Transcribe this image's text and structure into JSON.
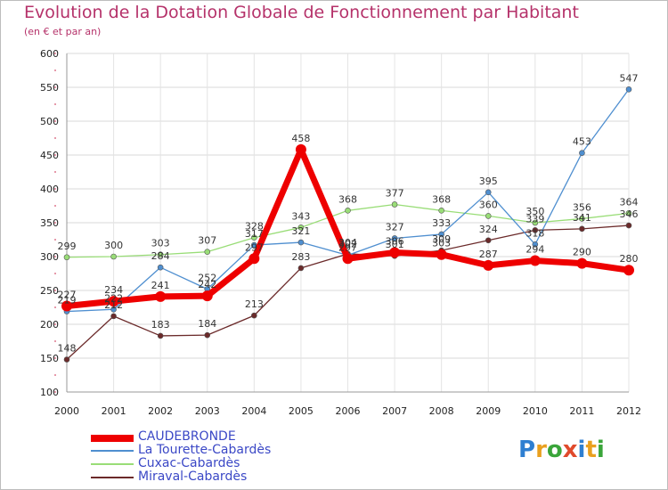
{
  "header": {
    "title": "Evolution de la Dotation Globale de Fonctionnement par Habitant",
    "subtitle": "(en € et par an)"
  },
  "logo": {
    "letters": [
      "P",
      "r",
      "o",
      "x",
      "i",
      "t",
      "i"
    ],
    "colors": [
      "#2e7fd1",
      "#e9a01f",
      "#3aa53a",
      "#e04a2c",
      "#2e7fd1",
      "#e9a01f",
      "#3aa53a"
    ]
  },
  "chart_data": {
    "type": "line",
    "title": "Evolution de la Dotation Globale de Fonctionnement par Habitant",
    "subtitle": "(en € et par an)",
    "x": [
      "2000",
      "2001",
      "2002",
      "2003",
      "2004",
      "2005",
      "2006",
      "2007",
      "2008",
      "2009",
      "2010",
      "2011",
      "2012"
    ],
    "ylim": [
      100,
      600
    ],
    "yticks": [
      100,
      150,
      200,
      250,
      300,
      350,
      400,
      450,
      500,
      550,
      600
    ],
    "grid": true,
    "legend_position": "bottom-left",
    "series": [
      {
        "name": "CAUDEBRONDE",
        "color": "#ee0000",
        "values": [
          227,
          234,
          241,
          242,
          297,
          458,
          297,
          306,
          303,
          287,
          294,
          290,
          280
        ],
        "labels": [
          "227",
          "234",
          "241",
          "242",
          "297",
          "458",
          "297",
          "306",
          "303",
          "287",
          "294",
          "290",
          "280"
        ]
      },
      {
        "name": "La Tourette-Cabardès",
        "color": "#4f8fd0",
        "values": [
          219,
          222,
          284,
          252,
          317,
          321,
          302,
          327,
          333,
          395,
          318,
          453,
          547
        ],
        "labels": [
          "219",
          "222",
          "284",
          "252",
          "317",
          "321",
          "302",
          "327",
          "333",
          "395",
          "318",
          "453",
          "547"
        ]
      },
      {
        "name": "Cuxac-Cabardès",
        "color": "#99dd77",
        "values": [
          299,
          300,
          303,
          307,
          328,
          343,
          368,
          377,
          368,
          360,
          350,
          356,
          364
        ],
        "labels": [
          "299",
          "300",
          "303",
          "307",
          "328",
          "343",
          "368",
          "377",
          "368",
          "360",
          "350",
          "356",
          "364"
        ]
      },
      {
        "name": "Miraval-Cabardès",
        "color": "#6b2a2a",
        "values": [
          148,
          212,
          183,
          184,
          213,
          283,
          304,
          301,
          309,
          324,
          339,
          341,
          346
        ],
        "labels": [
          "148",
          "212",
          "183",
          "184",
          "213",
          "283",
          "304",
          "301",
          "309",
          "324",
          "339",
          "341",
          "346"
        ]
      }
    ]
  }
}
